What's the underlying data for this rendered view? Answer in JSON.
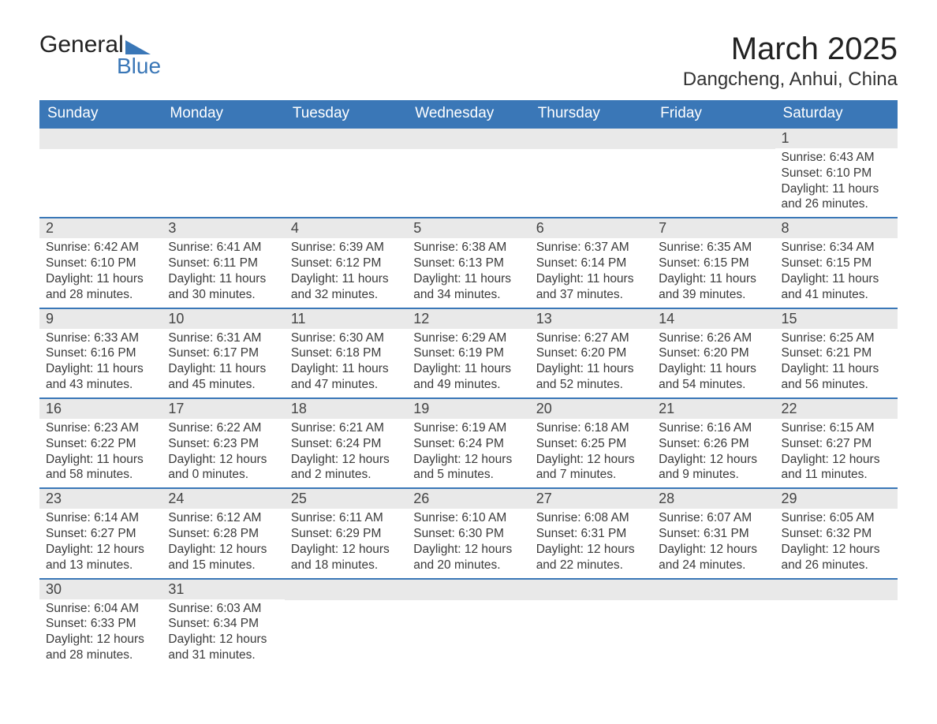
{
  "logo": {
    "text_top": "General",
    "text_bottom": "Blue"
  },
  "title": "March 2025",
  "location": "Dangcheng, Anhui, China",
  "colors": {
    "header_bg": "#3a77b7",
    "header_text": "#ffffff",
    "day_number_bg": "#e9e9e9",
    "border": "#3a77b7",
    "body_text": "#3a3a3a"
  },
  "day_labels": [
    "Sunday",
    "Monday",
    "Tuesday",
    "Wednesday",
    "Thursday",
    "Friday",
    "Saturday"
  ],
  "weeks": [
    [
      null,
      null,
      null,
      null,
      null,
      null,
      {
        "n": "1",
        "sunrise": "Sunrise: 6:43 AM",
        "sunset": "Sunset: 6:10 PM",
        "daylight1": "Daylight: 11 hours",
        "daylight2": "and 26 minutes."
      }
    ],
    [
      {
        "n": "2",
        "sunrise": "Sunrise: 6:42 AM",
        "sunset": "Sunset: 6:10 PM",
        "daylight1": "Daylight: 11 hours",
        "daylight2": "and 28 minutes."
      },
      {
        "n": "3",
        "sunrise": "Sunrise: 6:41 AM",
        "sunset": "Sunset: 6:11 PM",
        "daylight1": "Daylight: 11 hours",
        "daylight2": "and 30 minutes."
      },
      {
        "n": "4",
        "sunrise": "Sunrise: 6:39 AM",
        "sunset": "Sunset: 6:12 PM",
        "daylight1": "Daylight: 11 hours",
        "daylight2": "and 32 minutes."
      },
      {
        "n": "5",
        "sunrise": "Sunrise: 6:38 AM",
        "sunset": "Sunset: 6:13 PM",
        "daylight1": "Daylight: 11 hours",
        "daylight2": "and 34 minutes."
      },
      {
        "n": "6",
        "sunrise": "Sunrise: 6:37 AM",
        "sunset": "Sunset: 6:14 PM",
        "daylight1": "Daylight: 11 hours",
        "daylight2": "and 37 minutes."
      },
      {
        "n": "7",
        "sunrise": "Sunrise: 6:35 AM",
        "sunset": "Sunset: 6:15 PM",
        "daylight1": "Daylight: 11 hours",
        "daylight2": "and 39 minutes."
      },
      {
        "n": "8",
        "sunrise": "Sunrise: 6:34 AM",
        "sunset": "Sunset: 6:15 PM",
        "daylight1": "Daylight: 11 hours",
        "daylight2": "and 41 minutes."
      }
    ],
    [
      {
        "n": "9",
        "sunrise": "Sunrise: 6:33 AM",
        "sunset": "Sunset: 6:16 PM",
        "daylight1": "Daylight: 11 hours",
        "daylight2": "and 43 minutes."
      },
      {
        "n": "10",
        "sunrise": "Sunrise: 6:31 AM",
        "sunset": "Sunset: 6:17 PM",
        "daylight1": "Daylight: 11 hours",
        "daylight2": "and 45 minutes."
      },
      {
        "n": "11",
        "sunrise": "Sunrise: 6:30 AM",
        "sunset": "Sunset: 6:18 PM",
        "daylight1": "Daylight: 11 hours",
        "daylight2": "and 47 minutes."
      },
      {
        "n": "12",
        "sunrise": "Sunrise: 6:29 AM",
        "sunset": "Sunset: 6:19 PM",
        "daylight1": "Daylight: 11 hours",
        "daylight2": "and 49 minutes."
      },
      {
        "n": "13",
        "sunrise": "Sunrise: 6:27 AM",
        "sunset": "Sunset: 6:20 PM",
        "daylight1": "Daylight: 11 hours",
        "daylight2": "and 52 minutes."
      },
      {
        "n": "14",
        "sunrise": "Sunrise: 6:26 AM",
        "sunset": "Sunset: 6:20 PM",
        "daylight1": "Daylight: 11 hours",
        "daylight2": "and 54 minutes."
      },
      {
        "n": "15",
        "sunrise": "Sunrise: 6:25 AM",
        "sunset": "Sunset: 6:21 PM",
        "daylight1": "Daylight: 11 hours",
        "daylight2": "and 56 minutes."
      }
    ],
    [
      {
        "n": "16",
        "sunrise": "Sunrise: 6:23 AM",
        "sunset": "Sunset: 6:22 PM",
        "daylight1": "Daylight: 11 hours",
        "daylight2": "and 58 minutes."
      },
      {
        "n": "17",
        "sunrise": "Sunrise: 6:22 AM",
        "sunset": "Sunset: 6:23 PM",
        "daylight1": "Daylight: 12 hours",
        "daylight2": "and 0 minutes."
      },
      {
        "n": "18",
        "sunrise": "Sunrise: 6:21 AM",
        "sunset": "Sunset: 6:24 PM",
        "daylight1": "Daylight: 12 hours",
        "daylight2": "and 2 minutes."
      },
      {
        "n": "19",
        "sunrise": "Sunrise: 6:19 AM",
        "sunset": "Sunset: 6:24 PM",
        "daylight1": "Daylight: 12 hours",
        "daylight2": "and 5 minutes."
      },
      {
        "n": "20",
        "sunrise": "Sunrise: 6:18 AM",
        "sunset": "Sunset: 6:25 PM",
        "daylight1": "Daylight: 12 hours",
        "daylight2": "and 7 minutes."
      },
      {
        "n": "21",
        "sunrise": "Sunrise: 6:16 AM",
        "sunset": "Sunset: 6:26 PM",
        "daylight1": "Daylight: 12 hours",
        "daylight2": "and 9 minutes."
      },
      {
        "n": "22",
        "sunrise": "Sunrise: 6:15 AM",
        "sunset": "Sunset: 6:27 PM",
        "daylight1": "Daylight: 12 hours",
        "daylight2": "and 11 minutes."
      }
    ],
    [
      {
        "n": "23",
        "sunrise": "Sunrise: 6:14 AM",
        "sunset": "Sunset: 6:27 PM",
        "daylight1": "Daylight: 12 hours",
        "daylight2": "and 13 minutes."
      },
      {
        "n": "24",
        "sunrise": "Sunrise: 6:12 AM",
        "sunset": "Sunset: 6:28 PM",
        "daylight1": "Daylight: 12 hours",
        "daylight2": "and 15 minutes."
      },
      {
        "n": "25",
        "sunrise": "Sunrise: 6:11 AM",
        "sunset": "Sunset: 6:29 PM",
        "daylight1": "Daylight: 12 hours",
        "daylight2": "and 18 minutes."
      },
      {
        "n": "26",
        "sunrise": "Sunrise: 6:10 AM",
        "sunset": "Sunset: 6:30 PM",
        "daylight1": "Daylight: 12 hours",
        "daylight2": "and 20 minutes."
      },
      {
        "n": "27",
        "sunrise": "Sunrise: 6:08 AM",
        "sunset": "Sunset: 6:31 PM",
        "daylight1": "Daylight: 12 hours",
        "daylight2": "and 22 minutes."
      },
      {
        "n": "28",
        "sunrise": "Sunrise: 6:07 AM",
        "sunset": "Sunset: 6:31 PM",
        "daylight1": "Daylight: 12 hours",
        "daylight2": "and 24 minutes."
      },
      {
        "n": "29",
        "sunrise": "Sunrise: 6:05 AM",
        "sunset": "Sunset: 6:32 PM",
        "daylight1": "Daylight: 12 hours",
        "daylight2": "and 26 minutes."
      }
    ],
    [
      {
        "n": "30",
        "sunrise": "Sunrise: 6:04 AM",
        "sunset": "Sunset: 6:33 PM",
        "daylight1": "Daylight: 12 hours",
        "daylight2": "and 28 minutes."
      },
      {
        "n": "31",
        "sunrise": "Sunrise: 6:03 AM",
        "sunset": "Sunset: 6:34 PM",
        "daylight1": "Daylight: 12 hours",
        "daylight2": "and 31 minutes."
      },
      null,
      null,
      null,
      null,
      null
    ]
  ]
}
